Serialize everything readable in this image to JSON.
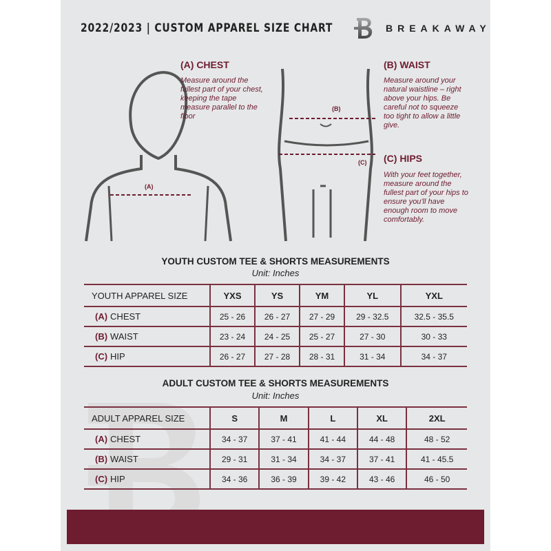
{
  "header": {
    "title": "2022/2023  |  CUSTOM APPAREL SIZE CHART",
    "brand": "BREAKAWAY",
    "logo_letter": "B"
  },
  "chest": {
    "heading": "(A) CHEST",
    "text": "Measure around the fullest part of your chest, keeping the tape measure parallel to the floor",
    "marker": "(A)"
  },
  "waist": {
    "heading": "(B) WAIST",
    "text": "Measure around your natural waistline – right above your hips. Be careful not to squeeze too tight to allow a little give.",
    "marker": "(B)"
  },
  "hips": {
    "heading": "(C) HIPS",
    "text": "With your feet together, measure around the fullest part of your hips to ensure you'll have enough room to move comfortably.",
    "marker": "(C)"
  },
  "youth": {
    "title": "YOUTH CUSTOM TEE & SHORTS MEASUREMENTS",
    "unit": "Unit: Inches",
    "size_label": "YOUTH APPAREL SIZE",
    "sizes": [
      "YXS",
      "YS",
      "YM",
      "YL",
      "YXL"
    ],
    "rows": [
      {
        "letter": "(A)",
        "name": "CHEST",
        "values": [
          "25 - 26",
          "26 - 27",
          "27 - 29",
          "29 - 32.5",
          "32.5 - 35.5"
        ]
      },
      {
        "letter": "(B)",
        "name": "WAIST",
        "values": [
          "23 - 24",
          "24 - 25",
          "25 - 27",
          "27 - 30",
          "30 - 33"
        ]
      },
      {
        "letter": "(C)",
        "name": "HIP",
        "values": [
          "26 - 27",
          "27 - 28",
          "28 - 31",
          "31 - 34",
          "34 - 37"
        ]
      }
    ]
  },
  "adult": {
    "title": "ADULT CUSTOM TEE & SHORTS MEASUREMENTS",
    "unit": "Unit: Inches",
    "size_label": "ADULT APPAREL SIZE",
    "sizes": [
      "S",
      "M",
      "L",
      "XL",
      "2XL"
    ],
    "rows": [
      {
        "letter": "(A)",
        "name": "CHEST",
        "values": [
          "34 - 37",
          "37 - 41",
          "41 - 44",
          "44 - 48",
          "48 - 52"
        ]
      },
      {
        "letter": "(B)",
        "name": "WAIST",
        "values": [
          "29 - 31",
          "31 - 34",
          "34 - 37",
          "37 - 41",
          "41 - 45.5"
        ]
      },
      {
        "letter": "(C)",
        "name": "HIP",
        "values": [
          "34 - 36",
          "36 - 39",
          "39 - 42",
          "43 - 46",
          "46 - 50"
        ]
      }
    ]
  },
  "colors": {
    "accent": "#6e1c30",
    "background": "#e6e7e8"
  }
}
